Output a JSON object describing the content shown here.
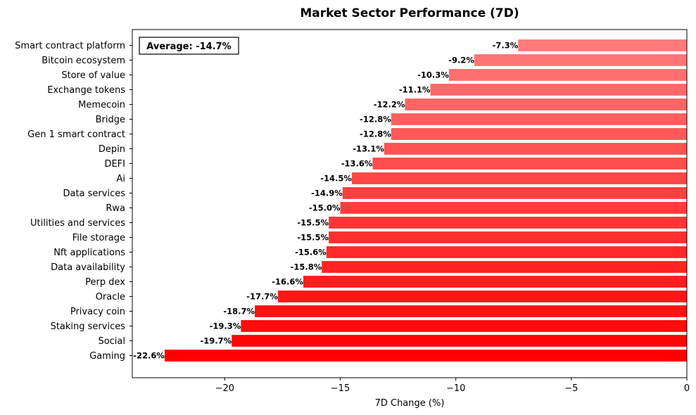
{
  "chart_data": {
    "type": "bar",
    "orientation": "horizontal",
    "title": "Market Sector Performance (7D)",
    "xlabel": "7D Change (%)",
    "ylabel": "",
    "xlim": [
      -24,
      0
    ],
    "xticks": [
      -20,
      -15,
      -10,
      -5,
      0
    ],
    "xtick_labels": [
      "−20",
      "−15",
      "−10",
      "−5",
      "0"
    ],
    "grid": false,
    "categories": [
      "Smart contract platform",
      "Bitcoin ecosystem",
      "Store of value",
      "Exchange tokens",
      "Memecoin",
      "Bridge",
      "Gen 1 smart contract",
      "Depin",
      "DEFI",
      "Ai",
      "Data services",
      "Rwa",
      "Utilities and services",
      "File storage",
      "Nft applications",
      "Data availability",
      "Perp dex",
      "Oracle",
      "Privacy coin",
      "Staking services",
      "Social",
      "Gaming"
    ],
    "values": [
      -7.3,
      -9.2,
      -10.3,
      -11.1,
      -12.2,
      -12.8,
      -12.8,
      -13.1,
      -13.6,
      -14.5,
      -14.9,
      -15.0,
      -15.5,
      -15.5,
      -15.6,
      -15.8,
      -16.6,
      -17.7,
      -18.7,
      -19.3,
      -19.7,
      -22.6
    ],
    "value_labels": [
      "-7.3%",
      "-9.2%",
      "-10.3%",
      "-11.1%",
      "-12.2%",
      "-12.8%",
      "-12.8%",
      "-13.1%",
      "-13.6%",
      "-14.5%",
      "-14.9%",
      "-15.0%",
      "-15.5%",
      "-15.5%",
      "-15.6%",
      "-15.8%",
      "-16.6%",
      "-17.7%",
      "-18.7%",
      "-19.3%",
      "-19.7%",
      "-22.6%"
    ],
    "annotation": "Average: -14.7%",
    "color_range": [
      "#ff7b7b",
      "#ff0000"
    ]
  }
}
